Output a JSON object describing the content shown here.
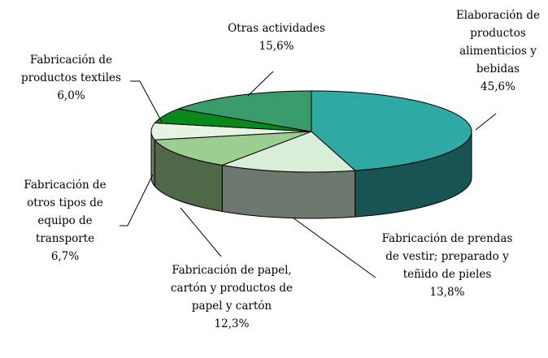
{
  "chart_data": {
    "type": "pie",
    "categories": [
      "Elaboración de productos alimenticios y bebidas",
      "Fabricación de prendas de vestir; preparado y teñido de pieles",
      "Fabricación de papel, cartón y productos de papel y cartón",
      "Fabricación de otros tipos de equipo de transporte",
      "Fabricación de productos textiles",
      "Otras actividades"
    ],
    "values": [
      45.6,
      13.8,
      12.3,
      6.7,
      6.0,
      15.6
    ],
    "value_labels": [
      "45,6%",
      "13,8%",
      "12,3%",
      "6,7%",
      "6,0%",
      "15,6%"
    ],
    "colors": [
      "#2fa9a3",
      "#d9eed9",
      "#9ccf8f",
      "#e6f2e2",
      "#07891c",
      "#3a9b6a"
    ]
  }
}
